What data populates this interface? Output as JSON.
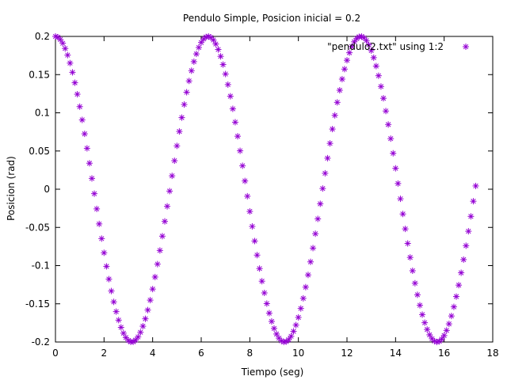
{
  "chart_data": {
    "type": "scatter",
    "title": "Pendulo Simple, Posicion inicial = 0.2",
    "xlabel": "Tiempo (seg)",
    "ylabel": "Posicion (rad)",
    "xlim": [
      0,
      18
    ],
    "ylim": [
      -0.2,
      0.2
    ],
    "xticks": [
      "0",
      "2",
      "4",
      "6",
      "8",
      "10",
      "12",
      "14",
      "16",
      "18"
    ],
    "yticks": [
      "-0.2",
      "-0.15",
      "-0.1",
      "-0.05",
      "0",
      "0.05",
      "0.1",
      "0.15",
      "0.2"
    ],
    "legend": {
      "label": "\"pendulo2.txt\" using 1:2",
      "position": "top-right"
    },
    "series": [
      {
        "name": "\"pendulo2.txt\" using 1:2",
        "color": "#9400d3",
        "marker": "asterisk",
        "x_start": 0,
        "x_step": 0.1,
        "count": 174,
        "amplitude": 0.2,
        "omega": 1.0,
        "model": "y = amplitude * cos(omega * x)"
      }
    ]
  }
}
